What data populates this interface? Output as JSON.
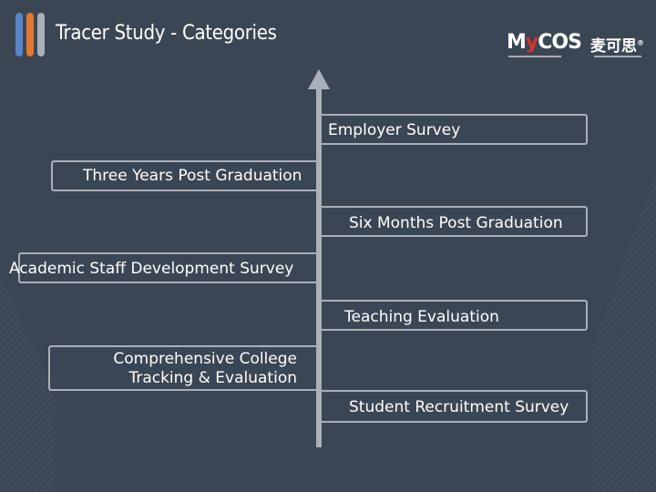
{
  "header": {
    "title": "Tracer Study - Categories",
    "accent_colors": [
      "#5a85c9",
      "#e07a33",
      "#a7afba"
    ]
  },
  "logo": {
    "brand_prefix": "M",
    "brand_accent": "y",
    "brand_suffix": "COS",
    "brand_chinese": "麦可思",
    "trademark": "®"
  },
  "diagram": {
    "axis_icon": "up-arrow",
    "items": [
      {
        "label": "Employer Survey",
        "side": "right"
      },
      {
        "label": "Three Years Post Graduation",
        "side": "left"
      },
      {
        "label": "Six Months Post Graduation",
        "side": "right"
      },
      {
        "label": "Academic Staff Development Survey",
        "side": "left"
      },
      {
        "label": "Teaching Evaluation",
        "side": "right"
      },
      {
        "label": "Comprehensive College\nTracking & Evaluation",
        "side": "left"
      },
      {
        "label": "Student Recruitment Survey",
        "side": "right"
      }
    ]
  },
  "colors": {
    "background": "#3b4654",
    "axis": "#a9b0ba",
    "text": "#ffffff",
    "logo_accent": "#d9322a"
  }
}
